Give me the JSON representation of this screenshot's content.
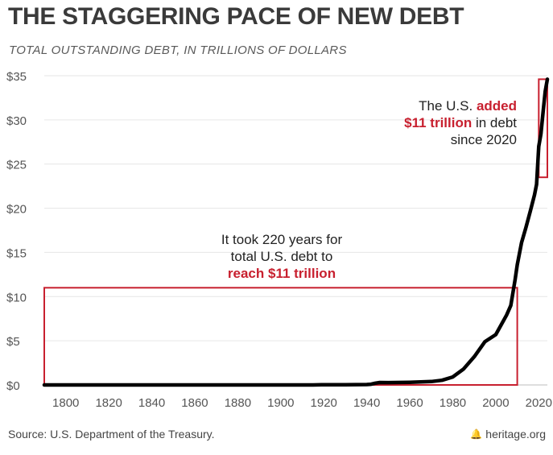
{
  "title": "THE STAGGERING PACE OF NEW DEBT",
  "subtitle": "TOTAL OUTSTANDING DEBT, IN TRILLIONS OF DOLLARS",
  "source": "Source: U.S. Department of the Treasury.",
  "brand": "heritage.org",
  "icons": {
    "brand_icon": "liberty-bell-icon"
  },
  "colors": {
    "line": "#000000",
    "highlight": "#c8202f",
    "grid": "#e6e6e6",
    "text": "#222222"
  },
  "annotations": {
    "left": {
      "line1": "It took 220 years for",
      "line2": "total U.S. debt to",
      "line3": "reach $11 trillion"
    },
    "right": {
      "line1_a": "The U.S. ",
      "line1_b": "added",
      "line2_a": "$11 trillion",
      "line2_b": " in debt",
      "line3": "since 2020"
    }
  },
  "chart_data": {
    "type": "line",
    "title": "THE STAGGERING PACE OF NEW DEBT",
    "subtitle": "TOTAL OUTSTANDING DEBT, IN TRILLIONS OF DOLLARS",
    "xlabel": "",
    "ylabel": "",
    "xlim": [
      1790,
      2024
    ],
    "ylim": [
      0,
      35
    ],
    "grid": true,
    "x_ticks": [
      1800,
      1820,
      1840,
      1860,
      1880,
      1900,
      1920,
      1940,
      1960,
      1980,
      2000,
      2020
    ],
    "y_ticks": [
      0,
      5,
      10,
      15,
      20,
      25,
      30,
      35
    ],
    "y_tick_labels": [
      "$0",
      "$5",
      "$10",
      "$15",
      "$20",
      "$25",
      "$30",
      "$35"
    ],
    "series": [
      {
        "x": [
          1790,
          1800,
          1850,
          1900,
          1915,
          1919,
          1930,
          1940,
          1942,
          1944,
          1946,
          1950,
          1960,
          1970,
          1975,
          1980,
          1985,
          1990,
          1995,
          2000,
          2005,
          2007,
          2009,
          2010,
          2012,
          2014,
          2016,
          2018,
          2019,
          2020,
          2021,
          2022,
          2023,
          2024
        ],
        "values": [
          0,
          0,
          0,
          0,
          0,
          0.02,
          0.02,
          0.05,
          0.08,
          0.2,
          0.27,
          0.26,
          0.29,
          0.38,
          0.53,
          0.9,
          1.8,
          3.2,
          4.9,
          5.7,
          7.9,
          9.0,
          11.9,
          13.6,
          16.1,
          17.8,
          19.6,
          21.5,
          22.7,
          27.0,
          28.4,
          30.9,
          33.2,
          34.6
        ]
      }
    ],
    "highlight_boxes": [
      {
        "from_year": 1790,
        "to_year": 2010,
        "from_value": 0,
        "to_value": 11
      },
      {
        "from_year": 2020,
        "to_year": 2024,
        "from_value": 23.5,
        "to_value": 34.6
      }
    ]
  }
}
